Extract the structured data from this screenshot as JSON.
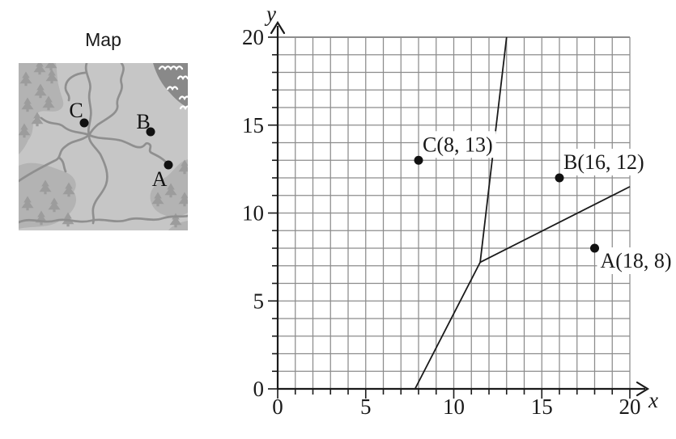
{
  "map_figure": {
    "title": "Map",
    "points": [
      {
        "label": "C"
      },
      {
        "label": "B"
      },
      {
        "label": "A"
      }
    ],
    "colors": {
      "land": "#c6c6c6",
      "forest": "#b3b3b3",
      "trees": "#9c9c9c",
      "water": "#898989",
      "river": "#8f8f8f",
      "wave": "#ffffff",
      "marker": "#111111"
    }
  },
  "chart_data": {
    "type": "scatter",
    "title": "",
    "xlabel": "x",
    "ylabel": "y",
    "xlim": [
      0,
      20
    ],
    "ylim": [
      0,
      20
    ],
    "major_ticks": [
      0,
      5,
      10,
      15,
      20
    ],
    "minor_tick_step": 1,
    "grid": true,
    "legend": "none",
    "points": [
      {
        "name": "C",
        "x": 8,
        "y": 13,
        "label": "C(8, 13)",
        "label_side": "above-right"
      },
      {
        "name": "B",
        "x": 16,
        "y": 12,
        "label": "B(16, 12)",
        "label_side": "above-right"
      },
      {
        "name": "A",
        "x": 18,
        "y": 8,
        "label": "A(18, 8)",
        "label_side": "below-right"
      }
    ],
    "lines": [
      {
        "name": "steep-line",
        "points": [
          [
            7.8,
            0
          ],
          [
            11.5,
            7.2
          ],
          [
            13,
            20
          ]
        ]
      },
      {
        "name": "branch-line",
        "points": [
          [
            11.5,
            7.2
          ],
          [
            20,
            11.5
          ]
        ]
      }
    ],
    "colors": {
      "grid": "#8c8c8c",
      "axis": "#1a1a1a",
      "line": "#1a1a1a",
      "point": "#111111",
      "label_bg": "#ffffff"
    }
  }
}
